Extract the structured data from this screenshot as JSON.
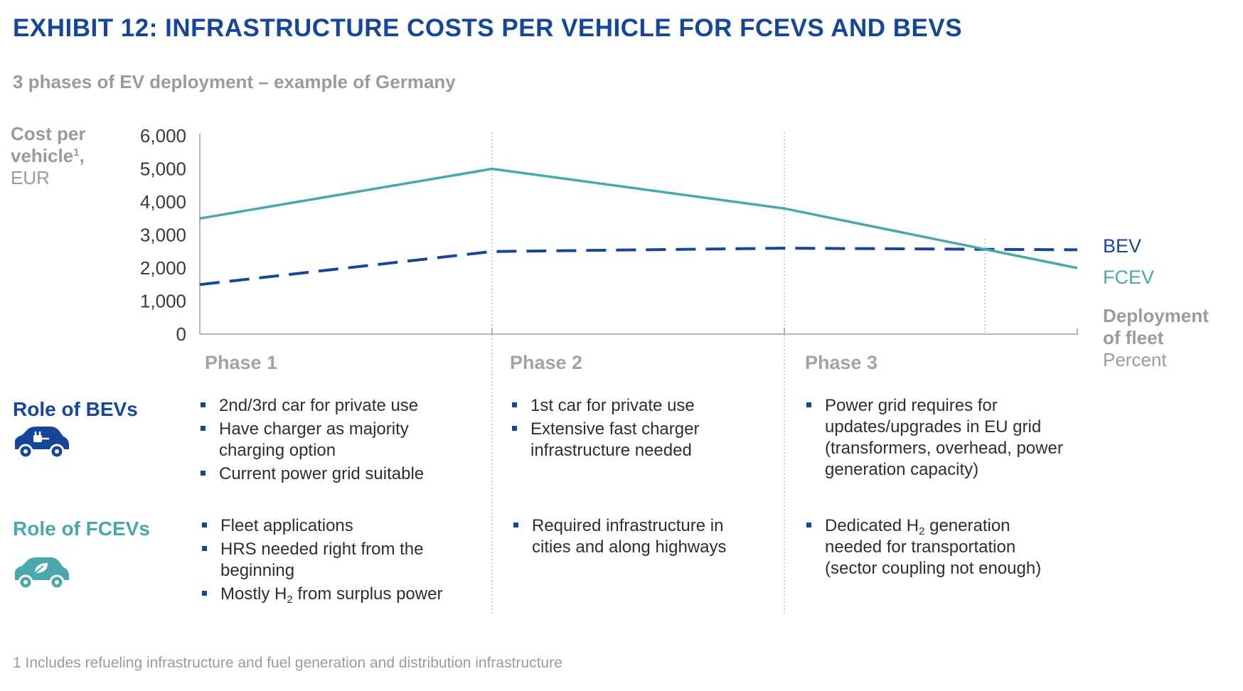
{
  "title": "EXHIBIT 12: INFRASTRUCTURE COSTS PER VEHICLE FOR FCEVS AND BEVS",
  "subtitle": "3 phases of EV deployment – example of Germany",
  "y_axis_label": {
    "line1": "Cost per",
    "line2": "vehicle",
    "sup": "1",
    "line2_tail": ",",
    "unit": "EUR"
  },
  "x_axis_label": {
    "line1": "Deployment",
    "line2": "of fleet",
    "unit": "Percent"
  },
  "colors": {
    "title": "#16469a",
    "bev": "#16469a",
    "fcev": "#4aa8ad",
    "grey": "#9b9b9b"
  },
  "chart_data": {
    "type": "line",
    "x": [
      0,
      1,
      2,
      3
    ],
    "ylim": [
      0,
      6000
    ],
    "yticks": [
      0,
      1000,
      2000,
      3000,
      4000,
      5000,
      6000
    ],
    "ytick_labels": [
      "0",
      "1,000",
      "2,000",
      "3,000",
      "4,000",
      "5,000",
      "6,000"
    ],
    "phases": [
      "Phase 1",
      "Phase 2",
      "Phase 3"
    ],
    "series": [
      {
        "name": "BEV",
        "style": "dashed",
        "color": "#16469a",
        "values": [
          1500,
          2500,
          2600,
          2550
        ]
      },
      {
        "name": "FCEV",
        "style": "solid",
        "color": "#4aa8ad",
        "values": [
          3500,
          5000,
          3800,
          2000
        ]
      }
    ],
    "xlabel": "Deployment of fleet",
    "xunit": "Percent",
    "ylabel": "Cost per vehicle, EUR",
    "grid": false
  },
  "roles": {
    "bev": {
      "title": "Role of BEVs",
      "icon": "electric-car-plug-icon"
    },
    "fcev": {
      "title": "Role of FCEVs",
      "icon": "electric-car-leaf-icon"
    }
  },
  "phase_notes": {
    "bev": [
      [
        "2nd/3rd car for private use",
        "Have charger as majority charging option",
        "Current power grid suitable"
      ],
      [
        "1st car for private use",
        "Extensive fast charger infrastructure needed"
      ],
      [
        "Power grid requires for updates/upgrades in EU grid (transformers, overhead, power generation capacity)"
      ]
    ],
    "fcev": [
      [
        "Fleet applications",
        "HRS needed right from the beginning",
        "Mostly H2 from surplus power"
      ],
      [
        "Required infrastructure in cities and along highways"
      ],
      [
        "Dedicated H2 generation needed for transportation (sector coupling not enough)"
      ]
    ]
  },
  "footnote": "1 Includes refueling infrastructure and fuel generation and distribution infrastructure"
}
